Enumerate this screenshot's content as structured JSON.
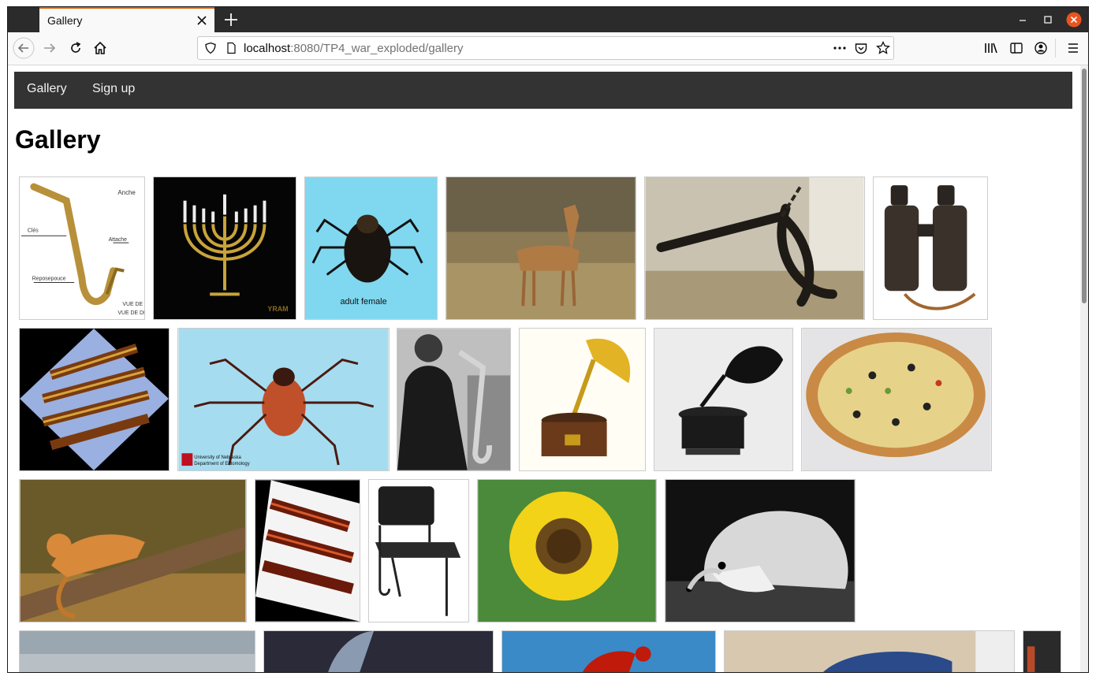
{
  "browser": {
    "tab_title": "Gallery",
    "url_host": "localhost",
    "url_rest": ":8080/TP4_war_exploded/gallery"
  },
  "nav": {
    "links": [
      "Gallery",
      "Sign up"
    ]
  },
  "page": {
    "heading": "Gallery"
  },
  "images": [
    {
      "name": "saxophone-diagram",
      "label_lines": [
        "Anche",
        "Clés",
        "Attache",
        "Reposepouce",
        "VUE DE CÔTÉ",
        "VUE DE DERRIÈRE"
      ]
    },
    {
      "name": "menorah",
      "label_lines": [
        "YRAM"
      ]
    },
    {
      "name": "tick-adult-female",
      "label_lines": [
        "adult female"
      ]
    },
    {
      "name": "gazelle",
      "label_lines": []
    },
    {
      "name": "anchor",
      "label_lines": []
    },
    {
      "name": "binoculars",
      "label_lines": []
    },
    {
      "name": "pagoda-rotated",
      "label_lines": []
    },
    {
      "name": "tick-dorsal",
      "label_lines": [
        "University of Nebraska",
        "Department of Entomology"
      ]
    },
    {
      "name": "saxophone-player",
      "label_lines": []
    },
    {
      "name": "gramophone-gold",
      "label_lines": []
    },
    {
      "name": "gramophone-engraving",
      "label_lines": []
    },
    {
      "name": "pizza",
      "label_lines": []
    },
    {
      "name": "cougar",
      "label_lines": []
    },
    {
      "name": "pagoda-tilted",
      "label_lines": []
    },
    {
      "name": "chair",
      "label_lines": []
    },
    {
      "name": "sunflower",
      "label_lines": []
    },
    {
      "name": "hedgehog",
      "label_lines": []
    },
    {
      "name": "cloud-sky",
      "label_lines": []
    },
    {
      "name": "dragonfly",
      "label_lines": []
    },
    {
      "name": "lobster",
      "label_lines": []
    },
    {
      "name": "fish",
      "label_lines": []
    },
    {
      "name": "partial-image",
      "label_lines": []
    }
  ]
}
